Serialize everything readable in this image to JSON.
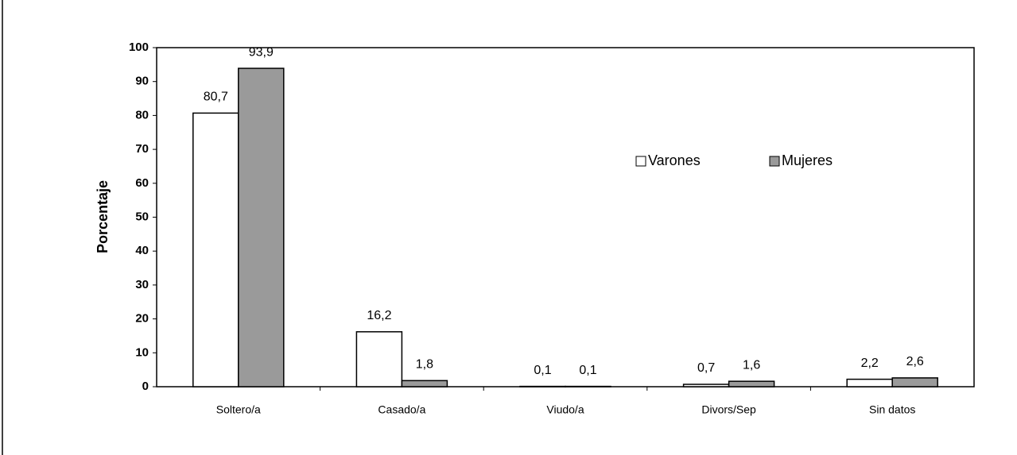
{
  "chart_data": {
    "type": "bar",
    "y_label": "Porcentaje",
    "categories": [
      "Soltero/a",
      "Casado/a",
      "Viudo/a",
      "Divors/Sep",
      "Sin datos"
    ],
    "series": [
      {
        "name": "Varones",
        "color": "#ffffff",
        "values": [
          80.7,
          16.2,
          0.1,
          0.7,
          2.2
        ],
        "value_labels": [
          "80,7",
          "16,2",
          "0,1",
          "0,7",
          "2,2"
        ]
      },
      {
        "name": "Mujeres",
        "color": "#9a9a9a",
        "values": [
          93.9,
          1.8,
          0.1,
          1.6,
          2.6
        ],
        "value_labels": [
          "93,9",
          "1,8",
          "0,1",
          "1,6",
          "2,6"
        ]
      }
    ],
    "ylim": [
      0,
      100
    ],
    "yticks": [
      0,
      10,
      20,
      30,
      40,
      50,
      60,
      70,
      80,
      90,
      100
    ],
    "legend": "top-right",
    "grid": false
  }
}
